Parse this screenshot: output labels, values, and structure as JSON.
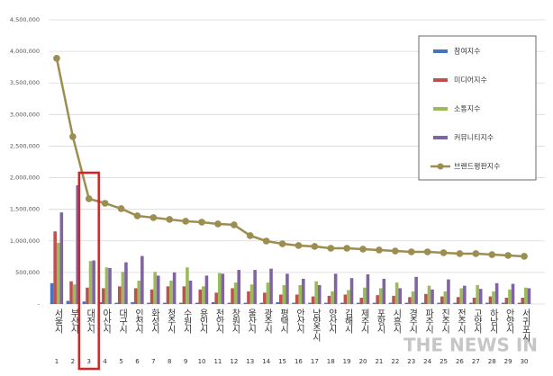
{
  "chart_data": {
    "type": "bar_line",
    "categories": [
      "서울시",
      "부산시",
      "대전시",
      "아산시",
      "대구시",
      "인천시",
      "화성시",
      "청주시",
      "수원시",
      "용인시",
      "천안시",
      "창원시",
      "울산시",
      "광주시",
      "평택시",
      "안산시",
      "남양주시",
      "양산시",
      "김해시",
      "제주시",
      "포항시",
      "시흥시",
      "경주시",
      "파주시",
      "진주시",
      "전주시",
      "고양시",
      "하남시",
      "안양시",
      "서귀포시"
    ],
    "ranks": [
      1,
      2,
      3,
      4,
      5,
      6,
      7,
      8,
      9,
      10,
      11,
      12,
      13,
      14,
      15,
      16,
      17,
      18,
      19,
      20,
      21,
      22,
      23,
      24,
      25,
      26,
      27,
      28,
      29,
      30
    ],
    "series": [
      {
        "name": "참여지수",
        "kind": "bar",
        "color": "#4472c4",
        "values": [
          330000,
          50000,
          40000,
          30000,
          20000,
          30000,
          20000,
          20000,
          20000,
          20000,
          30000,
          20000,
          20000,
          20000,
          30000,
          20000,
          20000,
          20000,
          20000,
          20000,
          20000,
          20000,
          20000,
          20000,
          20000,
          20000,
          20000,
          20000,
          20000,
          20000
        ]
      },
      {
        "name": "미디어지수",
        "kind": "bar",
        "color": "#c0504d",
        "values": [
          1150000,
          360000,
          260000,
          250000,
          280000,
          250000,
          230000,
          280000,
          280000,
          230000,
          180000,
          250000,
          200000,
          180000,
          150000,
          150000,
          120000,
          130000,
          150000,
          100000,
          140000,
          130000,
          110000,
          160000,
          120000,
          110000,
          100000,
          120000,
          100000,
          100000
        ]
      },
      {
        "name": "소통지수",
        "kind": "bar",
        "color": "#9bbb59",
        "values": [
          970000,
          310000,
          680000,
          580000,
          510000,
          370000,
          510000,
          370000,
          580000,
          280000,
          490000,
          340000,
          310000,
          340000,
          300000,
          300000,
          360000,
          200000,
          220000,
          260000,
          250000,
          340000,
          200000,
          290000,
          200000,
          250000,
          300000,
          200000,
          230000,
          260000
        ]
      },
      {
        "name": "커뮤니티지수",
        "kind": "bar",
        "color": "#8064a2",
        "values": [
          1450000,
          1880000,
          690000,
          570000,
          660000,
          760000,
          450000,
          500000,
          370000,
          450000,
          480000,
          540000,
          540000,
          560000,
          480000,
          400000,
          300000,
          480000,
          410000,
          470000,
          400000,
          250000,
          430000,
          230000,
          390000,
          290000,
          240000,
          330000,
          320000,
          250000
        ]
      },
      {
        "name": "브랜드평판지수",
        "kind": "line",
        "color": "#9c8d50",
        "values": [
          3890000,
          2650000,
          1667000,
          1595000,
          1510000,
          1396000,
          1368000,
          1339000,
          1311000,
          1296000,
          1268000,
          1254000,
          1083000,
          997000,
          954000,
          926000,
          912000,
          883000,
          883000,
          869000,
          855000,
          840000,
          826000,
          826000,
          812000,
          798000,
          798000,
          783000,
          769000,
          755000
        ]
      }
    ],
    "ylim": [
      0,
      4500000
    ],
    "yticks": [
      {
        "value": 0,
        "label": "-"
      },
      {
        "value": 500000,
        "label": "500,000"
      },
      {
        "value": 1000000,
        "label": "1,000,000"
      },
      {
        "value": 1500000,
        "label": "1,500,000"
      },
      {
        "value": 2000000,
        "label": "2,000,000"
      },
      {
        "value": 2500000,
        "label": "2,500,000"
      },
      {
        "value": 3000000,
        "label": "3,000,000"
      },
      {
        "value": 3500000,
        "label": "3,500,000"
      },
      {
        "value": 4000000,
        "label": "4,000,000"
      },
      {
        "value": 4500000,
        "label": "4,500,000"
      }
    ],
    "grid": true,
    "legend": "upper right",
    "highlight_category": 2,
    "watermark": "THE NEWS IN"
  }
}
